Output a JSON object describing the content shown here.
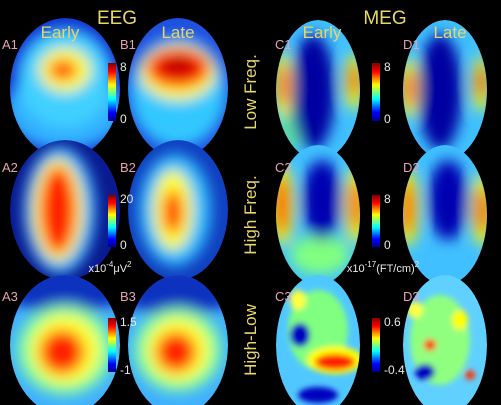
{
  "titles": {
    "eeg": "EEG",
    "meg": "MEG"
  },
  "columns": [
    "Early",
    "Late",
    "Early",
    "Late"
  ],
  "rows": [
    "Low Freq.",
    "High Freq.",
    "High-Low"
  ],
  "panel_labels": [
    "A1",
    "B1",
    "C1",
    "D1",
    "A2",
    "B2",
    "C2",
    "D2",
    "A3",
    "B3",
    "C3",
    "D3"
  ],
  "colorbars": [
    {
      "max": 8,
      "min": 0
    },
    {
      "max": 8,
      "min": 0
    },
    {
      "max": 20,
      "min": 0
    },
    {
      "max": 8,
      "min": 0
    },
    {
      "max": 1.5,
      "min": -1
    },
    {
      "max": 0.6,
      "min": -0.4
    }
  ],
  "units": {
    "eeg": {
      "prefix": "x10",
      "exp": "-4",
      "unit": "μV",
      "unit_exp": "2"
    },
    "meg": {
      "prefix": "x10",
      "exp": "-17",
      "unit": "(FT/cm)",
      "unit_exp": "2"
    }
  }
}
